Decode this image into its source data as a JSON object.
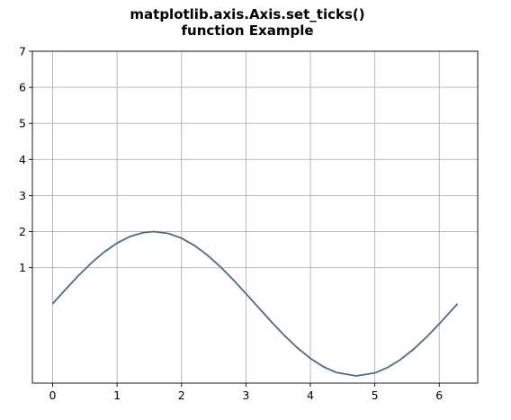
{
  "title_line1": "matplotlib.axis.Axis.set_ticks()",
  "title_line2": "function Example",
  "chart_data": {
    "type": "line",
    "title": "matplotlib.axis.Axis.set_ticks() function Example",
    "xlabel": "",
    "ylabel": "",
    "xlim": [
      -0.314,
      6.597
    ],
    "ylim": [
      -2.2,
      7
    ],
    "xticks": [
      0,
      1,
      2,
      3,
      4,
      5,
      6
    ],
    "xtick_labels": [
      "0",
      "1",
      "2",
      "3",
      "4",
      "5",
      "6"
    ],
    "yticks": [
      1,
      2,
      3,
      4,
      5,
      6,
      7
    ],
    "ytick_labels": [
      "1",
      "2",
      "3",
      "4",
      "5",
      "6",
      "7"
    ],
    "grid": true,
    "series": [
      {
        "color": "#4a6b8a",
        "x": [
          0.0,
          0.2,
          0.4,
          0.6,
          0.8,
          1.0,
          1.2,
          1.4,
          1.5708,
          1.8,
          2.0,
          2.2,
          2.4,
          2.6,
          2.8,
          3.0,
          3.1416,
          3.4,
          3.6,
          3.8,
          4.0,
          4.2,
          4.4,
          4.7124,
          5.0,
          5.2,
          5.4,
          5.6,
          5.8,
          6.0,
          6.2832
        ],
        "y": [
          0.0,
          0.397,
          0.779,
          1.129,
          1.435,
          1.683,
          1.864,
          1.971,
          2.0,
          1.948,
          1.819,
          1.617,
          1.351,
          1.031,
          0.67,
          0.282,
          0.0,
          -0.511,
          -0.885,
          -1.224,
          -1.514,
          -1.743,
          -1.903,
          -2.0,
          -1.918,
          -1.766,
          -1.545,
          -1.262,
          -0.928,
          -0.559,
          0.0
        ]
      }
    ]
  }
}
